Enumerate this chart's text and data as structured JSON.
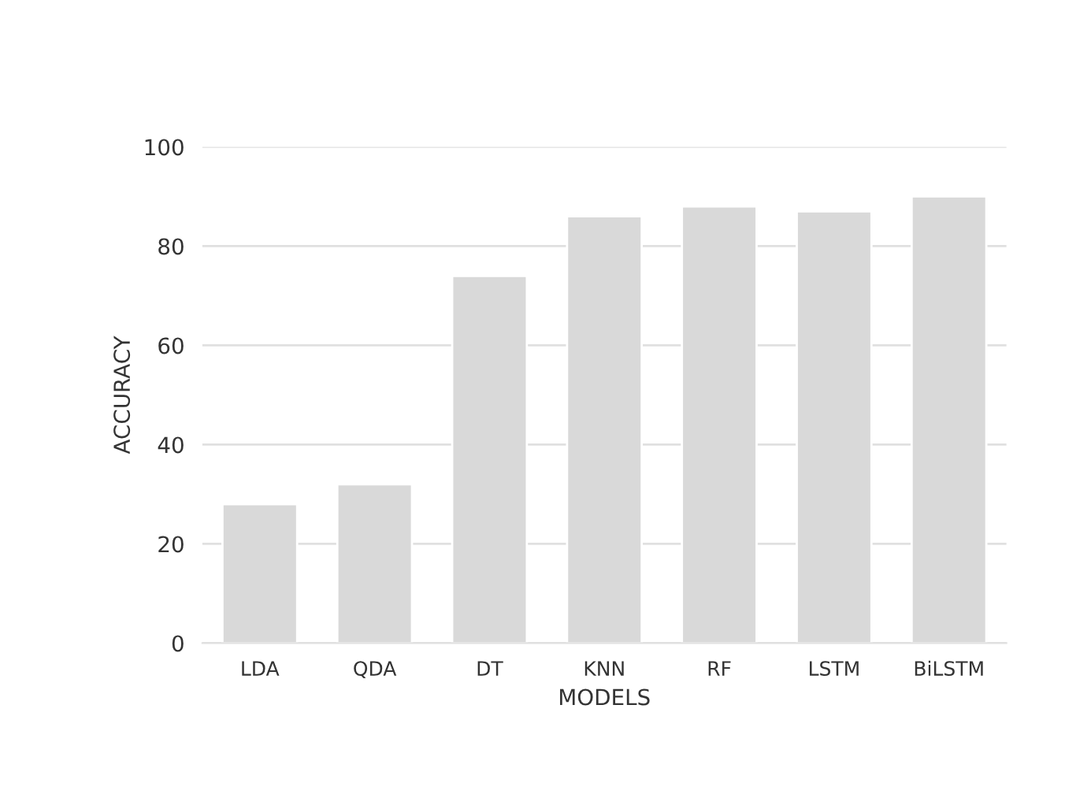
{
  "chart_data": {
    "type": "bar",
    "xlabel": "MODELS",
    "ylabel": "ACCURACY",
    "categories": [
      "LDA",
      "QDA",
      "DT",
      "KNN",
      "RF",
      "LSTM",
      "BiLSTM"
    ],
    "values": [
      28,
      32,
      74,
      86,
      88,
      87,
      90
    ],
    "color": "#d9d9d9",
    "ylim": [
      0,
      100
    ],
    "yticks": [
      0,
      20,
      40,
      60,
      80,
      100
    ],
    "grid": "y"
  }
}
